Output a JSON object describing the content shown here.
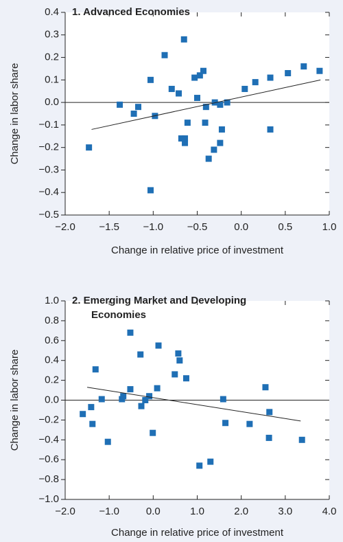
{
  "chart_data": [
    {
      "type": "scatter",
      "title": [
        "1. Advanced Economies"
      ],
      "x_label": "Change in relative price of investment",
      "y_label": "Change in labor share",
      "color": "#1f6fb5",
      "xlim": [
        -2,
        1
      ],
      "ylim": [
        -0.5,
        0.4
      ],
      "xticks": [
        {
          "value": -2,
          "label": "−2.0"
        },
        {
          "value": -1.5,
          "label": "−1.5"
        },
        {
          "value": -1,
          "label": "−1.0"
        },
        {
          "value": -0.5,
          "label": "−0.5"
        },
        {
          "value": 0,
          "label": "0.0"
        },
        {
          "value": 0.5,
          "label": "0.5"
        },
        {
          "value": 1,
          "label": "1.0"
        }
      ],
      "yticks": [
        0.4,
        0.3,
        0.2,
        0.1,
        {
          "value": 0,
          "label": "0.0"
        },
        {
          "value": -0.1,
          "label": "−0.1"
        },
        {
          "value": -0.2,
          "label": "−0.2"
        },
        {
          "value": -0.3,
          "label": "−0.3"
        },
        {
          "value": -0.4,
          "label": "−0.4"
        },
        {
          "value": -0.5,
          "label": "−0.5"
        }
      ],
      "x": [
        -1.73,
        -1.38,
        -1.22,
        -1.17,
        -1.03,
        -1.03,
        -0.98,
        -0.87,
        -0.79,
        -0.71,
        -0.68,
        -0.65,
        -0.64,
        -0.64,
        -0.61,
        -0.53,
        -0.5,
        -0.47,
        -0.43,
        -0.41,
        -0.4,
        -0.37,
        -0.31,
        -0.3,
        -0.24,
        -0.24,
        -0.22,
        -0.16,
        0.04,
        0.16,
        0.33,
        0.33,
        0.53,
        0.71,
        0.89
      ],
      "y": [
        -0.2,
        -0.01,
        -0.05,
        -0.02,
        0.1,
        -0.39,
        -0.06,
        0.21,
        0.06,
        0.04,
        -0.16,
        0.28,
        -0.18,
        -0.16,
        -0.09,
        0.11,
        0.02,
        0.12,
        0.14,
        -0.09,
        -0.02,
        -0.25,
        -0.21,
        0.0,
        -0.01,
        -0.18,
        -0.12,
        0.0,
        0.06,
        0.09,
        -0.12,
        0.11,
        0.13,
        0.16,
        0.14
      ],
      "trend_line": {
        "x": [
          -1.7,
          0.9
        ],
        "y": [
          -0.12,
          0.1
        ]
      }
    },
    {
      "type": "scatter",
      "title": [
        "2. Emerging Market and Developing",
        "Economies"
      ],
      "x_label": "Change in relative price of investment",
      "y_label": "Change in labor share",
      "color": "#1f6fb5",
      "xlim": [
        -2,
        4
      ],
      "ylim": [
        -1,
        1
      ],
      "xticks": [
        {
          "value": -2,
          "label": "−2.0"
        },
        {
          "value": -1,
          "label": "−1.0"
        },
        {
          "value": 0,
          "label": "0.0"
        },
        {
          "value": 1,
          "label": "1.0"
        },
        {
          "value": 2,
          "label": "2.0"
        },
        {
          "value": 3,
          "label": "3.0"
        },
        {
          "value": 4,
          "label": "4.0"
        }
      ],
      "yticks": [
        {
          "value": 1,
          "label": "1.0"
        },
        0.8,
        0.6,
        0.4,
        0.2,
        {
          "value": 0,
          "label": "0.0"
        },
        {
          "value": -0.2,
          "label": "−0.2"
        },
        {
          "value": -0.4,
          "label": "−0.4"
        },
        {
          "value": -0.6,
          "label": "−0.6"
        },
        {
          "value": -0.8,
          "label": "−0.8"
        },
        {
          "value": -1,
          "label": "−1.0"
        }
      ],
      "x": [
        -1.6,
        -1.41,
        -1.38,
        -1.31,
        -1.17,
        -1.03,
        -0.71,
        -0.68,
        -0.52,
        -0.52,
        -0.29,
        -0.27,
        -0.18,
        -0.09,
        -0.01,
        0.09,
        0.12,
        0.49,
        0.57,
        0.6,
        0.75,
        1.05,
        1.3,
        1.59,
        1.64,
        2.19,
        2.55,
        2.64,
        2.63,
        3.38
      ],
      "y": [
        -0.14,
        -0.07,
        -0.24,
        0.31,
        0.01,
        -0.42,
        0.01,
        0.04,
        0.68,
        0.11,
        0.46,
        -0.06,
        0.0,
        0.04,
        -0.33,
        0.12,
        0.55,
        0.26,
        0.47,
        0.4,
        0.22,
        -0.66,
        -0.62,
        0.01,
        -0.23,
        -0.24,
        0.13,
        -0.12,
        -0.38,
        -0.4
      ],
      "trend_line": {
        "x": [
          -1.5,
          3.35
        ],
        "y": [
          0.13,
          -0.21
        ]
      }
    }
  ]
}
